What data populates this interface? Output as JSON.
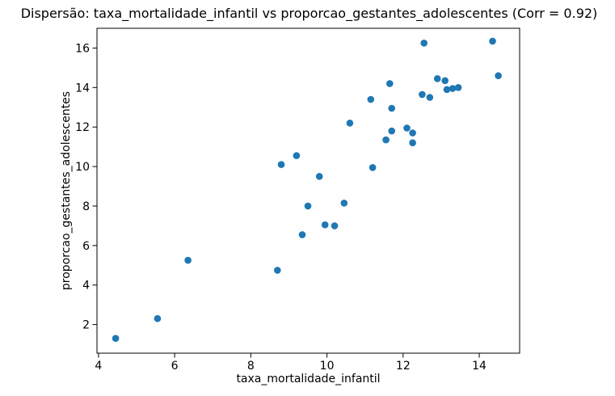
{
  "chart_data": {
    "type": "scatter",
    "title": "Dispersão: taxa_mortalidade_infantil vs proporcao_gestantes_adolescentes (Corr = 0.92)",
    "xlabel": "taxa_mortalidade_infantil",
    "ylabel": "proporcao_gestantes_adolescentes",
    "correlation": 0.92,
    "xlim": [
      3.96,
      15.06
    ],
    "ylim": [
      0.55,
      17.0
    ],
    "x_ticks": [
      4,
      6,
      8,
      10,
      12,
      14
    ],
    "y_ticks": [
      2,
      4,
      6,
      8,
      10,
      12,
      14,
      16
    ],
    "grid": false,
    "legend_position": "none",
    "marker_color": "#1f77b4",
    "axis_color": "#000000",
    "points": [
      [
        4.45,
        1.3
      ],
      [
        5.55,
        2.3
      ],
      [
        6.35,
        5.25
      ],
      [
        8.7,
        4.75
      ],
      [
        8.8,
        10.1
      ],
      [
        9.2,
        10.55
      ],
      [
        9.35,
        6.55
      ],
      [
        9.5,
        8.0
      ],
      [
        9.8,
        9.5
      ],
      [
        9.95,
        7.05
      ],
      [
        10.2,
        7.0
      ],
      [
        10.45,
        8.15
      ],
      [
        10.6,
        12.2
      ],
      [
        11.15,
        13.4
      ],
      [
        11.2,
        9.95
      ],
      [
        11.55,
        11.35
      ],
      [
        11.65,
        14.2
      ],
      [
        11.7,
        12.95
      ],
      [
        11.7,
        11.8
      ],
      [
        12.1,
        11.95
      ],
      [
        12.25,
        11.7
      ],
      [
        12.25,
        11.2
      ],
      [
        12.5,
        13.65
      ],
      [
        12.55,
        16.25
      ],
      [
        12.7,
        13.5
      ],
      [
        12.9,
        14.45
      ],
      [
        13.1,
        14.35
      ],
      [
        13.15,
        13.9
      ],
      [
        13.3,
        13.95
      ],
      [
        13.45,
        14.0
      ],
      [
        14.35,
        16.35
      ],
      [
        14.5,
        14.6
      ]
    ]
  }
}
